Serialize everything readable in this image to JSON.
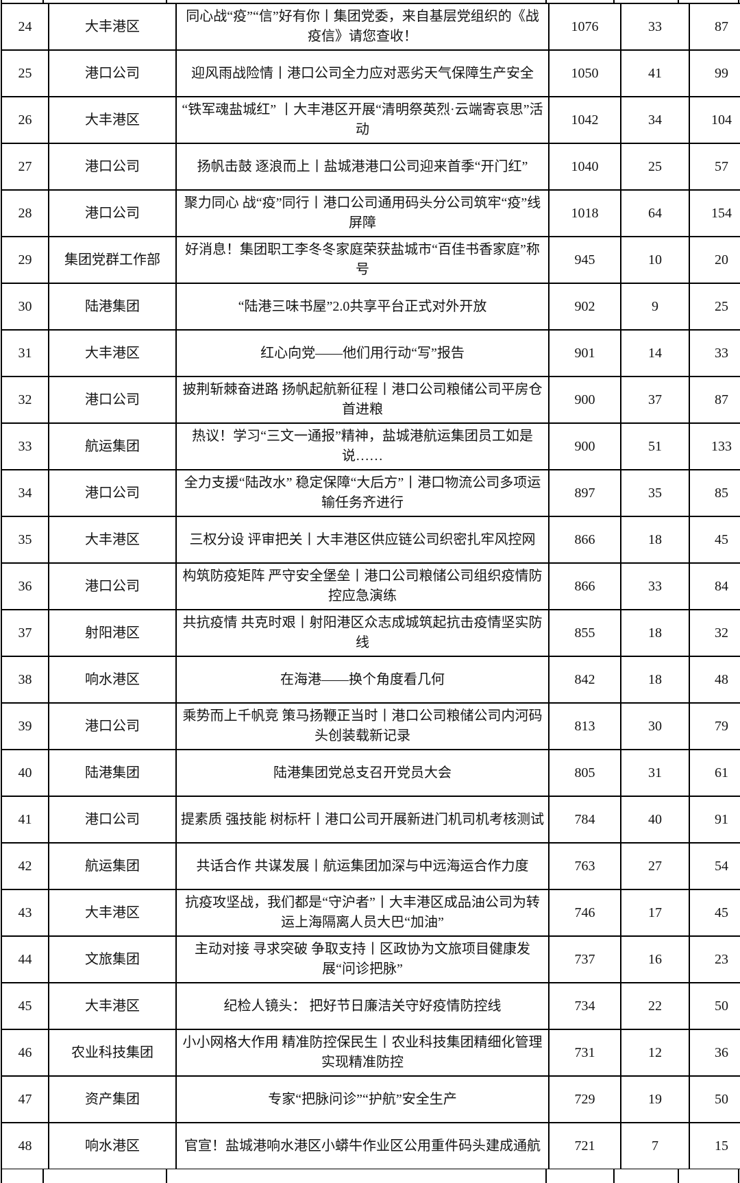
{
  "table": {
    "rows": [
      {
        "rank": "24",
        "department": "大丰港区",
        "title": "同心战“疫”“信”好有你丨集团党委，来自基层党组织的《战疫信》请您查收！",
        "reads": "1076",
        "shares": "33",
        "likes": "87"
      },
      {
        "rank": "25",
        "department": "港口公司",
        "title": "迎风雨战险情丨港口公司全力应对恶劣天气保障生产安全",
        "reads": "1050",
        "shares": "41",
        "likes": "99"
      },
      {
        "rank": "26",
        "department": "大丰港区",
        "title": "“铁军魂盐城红” 丨大丰港区开展“清明祭英烈·云端寄哀思”活动",
        "reads": "1042",
        "shares": "34",
        "likes": "104"
      },
      {
        "rank": "27",
        "department": "港口公司",
        "title": "扬帆击鼓 逐浪而上丨盐城港港口公司迎来首季“开门红”",
        "reads": "1040",
        "shares": "25",
        "likes": "57"
      },
      {
        "rank": "28",
        "department": "港口公司",
        "title": "聚力同心 战“疫”同行丨港口公司通用码头分公司筑牢“疫”线屏障",
        "reads": "1018",
        "shares": "64",
        "likes": "154"
      },
      {
        "rank": "29",
        "department": "集团党群工作部",
        "title": "好消息！集团职工李冬冬家庭荣获盐城市“百佳书香家庭”称号",
        "reads": "945",
        "shares": "10",
        "likes": "20"
      },
      {
        "rank": "30",
        "department": "陆港集团",
        "title": "“陆港三味书屋”2.0共享平台正式对外开放",
        "reads": "902",
        "shares": "9",
        "likes": "25"
      },
      {
        "rank": "31",
        "department": "大丰港区",
        "title": "红心向党——他们用行动“写”报告",
        "reads": "901",
        "shares": "14",
        "likes": "33"
      },
      {
        "rank": "32",
        "department": "港口公司",
        "title": "披荆斩棘奋进路 扬帆起航新征程丨港口公司粮储公司平房仓首进粮",
        "reads": "900",
        "shares": "37",
        "likes": "87"
      },
      {
        "rank": "33",
        "department": "航运集团",
        "title": "热议！学习“三文一通报”精神，盐城港航运集团员工如是说……",
        "reads": "900",
        "shares": "51",
        "likes": "133"
      },
      {
        "rank": "34",
        "department": "港口公司",
        "title": "全力支援“陆改水” 稳定保障“大后方”丨港口物流公司多项运输任务齐进行",
        "reads": "897",
        "shares": "35",
        "likes": "85"
      },
      {
        "rank": "35",
        "department": "大丰港区",
        "title": "三权分设 评审把关丨大丰港区供应链公司织密扎牢风控网",
        "reads": "866",
        "shares": "18",
        "likes": "45"
      },
      {
        "rank": "36",
        "department": "港口公司",
        "title": "构筑防疫矩阵 严守安全堡垒丨港口公司粮储公司组织疫情防控应急演练",
        "reads": "866",
        "shares": "33",
        "likes": "84"
      },
      {
        "rank": "37",
        "department": "射阳港区",
        "title": "共抗疫情 共克时艰丨射阳港区众志成城筑起抗击疫情坚实防线",
        "reads": "855",
        "shares": "18",
        "likes": "32"
      },
      {
        "rank": "38",
        "department": "响水港区",
        "title": "在海港——换个角度看几何",
        "reads": "842",
        "shares": "18",
        "likes": "48"
      },
      {
        "rank": "39",
        "department": "港口公司",
        "title": "乘势而上千帆竞 策马扬鞭正当时丨港口公司粮储公司内河码头创装载新记录",
        "reads": "813",
        "shares": "30",
        "likes": "79"
      },
      {
        "rank": "40",
        "department": "陆港集团",
        "title": "陆港集团党总支召开党员大会",
        "reads": "805",
        "shares": "31",
        "likes": "61"
      },
      {
        "rank": "41",
        "department": "港口公司",
        "title": "提素质 强技能 树标杆丨港口公司开展新进门机司机考核测试",
        "reads": "784",
        "shares": "40",
        "likes": "91"
      },
      {
        "rank": "42",
        "department": "航运集团",
        "title": "共话合作 共谋发展丨航运集团加深与中远海运合作力度",
        "reads": "763",
        "shares": "27",
        "likes": "54"
      },
      {
        "rank": "43",
        "department": "大丰港区",
        "title": "抗疫攻坚战，我们都是“守沪者”丨大丰港区成品油公司为转运上海隔离人员大巴“加油”",
        "reads": "746",
        "shares": "17",
        "likes": "45"
      },
      {
        "rank": "44",
        "department": "文旅集团",
        "title": "主动对接 寻求突破 争取支持丨区政协为文旅项目健康发展“问诊把脉”",
        "reads": "737",
        "shares": "16",
        "likes": "23"
      },
      {
        "rank": "45",
        "department": "大丰港区",
        "title": "纪检人镜头： 把好节日廉洁关守好疫情防控线",
        "reads": "734",
        "shares": "22",
        "likes": "50"
      },
      {
        "rank": "46",
        "department": "农业科技集团",
        "title": "小小网格大作用 精准防控保民生丨农业科技集团精细化管理实现精准防控",
        "reads": "731",
        "shares": "12",
        "likes": "36"
      },
      {
        "rank": "47",
        "department": "资产集团",
        "title": "专家“把脉问诊”“护航”安全生产",
        "reads": "729",
        "shares": "19",
        "likes": "50"
      },
      {
        "rank": "48",
        "department": "响水港区",
        "title": "官宣！盐城港响水港区小蟒牛作业区公用重件码头建成通航",
        "reads": "721",
        "shares": "7",
        "likes": "15"
      }
    ],
    "column_keys": [
      "rank",
      "department",
      "title",
      "reads",
      "shares",
      "likes"
    ],
    "grid_x_positions": [
      1,
      62,
      242,
      796,
      895,
      989,
      1077
    ]
  }
}
